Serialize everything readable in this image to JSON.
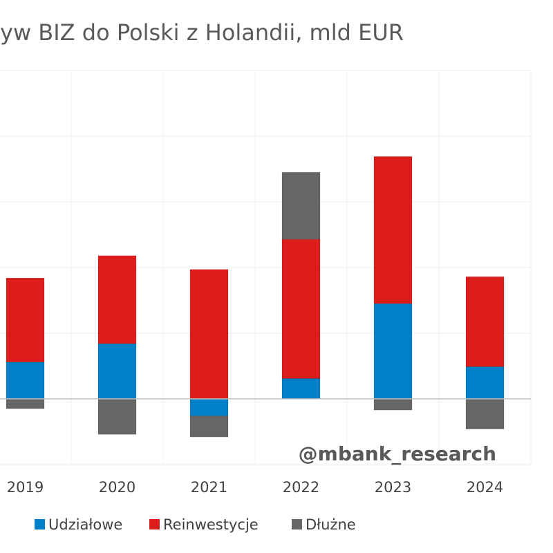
{
  "chart_data": {
    "type": "bar",
    "stacked": true,
    "title": "yw BIZ do Polski z Holandii, mld EUR",
    "xlabel": "",
    "ylabel": "",
    "ylim": [
      -1.0,
      5.0
    ],
    "categories": [
      "2019",
      "2020",
      "2021",
      "2022",
      "2023",
      "2024"
    ],
    "series": [
      {
        "name": "Udziałowe",
        "color": "#0080C8",
        "values": [
          0.56,
          0.84,
          -0.26,
          0.31,
          1.45,
          0.49
        ]
      },
      {
        "name": "Reinwestycje",
        "color": "#DD1C1C",
        "values": [
          1.28,
          1.34,
          1.97,
          2.12,
          2.24,
          1.37
        ]
      },
      {
        "name": "Dłużne",
        "color": "#666666",
        "values": [
          -0.15,
          -0.54,
          -0.32,
          1.02,
          -0.17,
          -0.46
        ]
      }
    ],
    "grid": true,
    "legend": "bottom",
    "watermark": "@mbank_research"
  }
}
